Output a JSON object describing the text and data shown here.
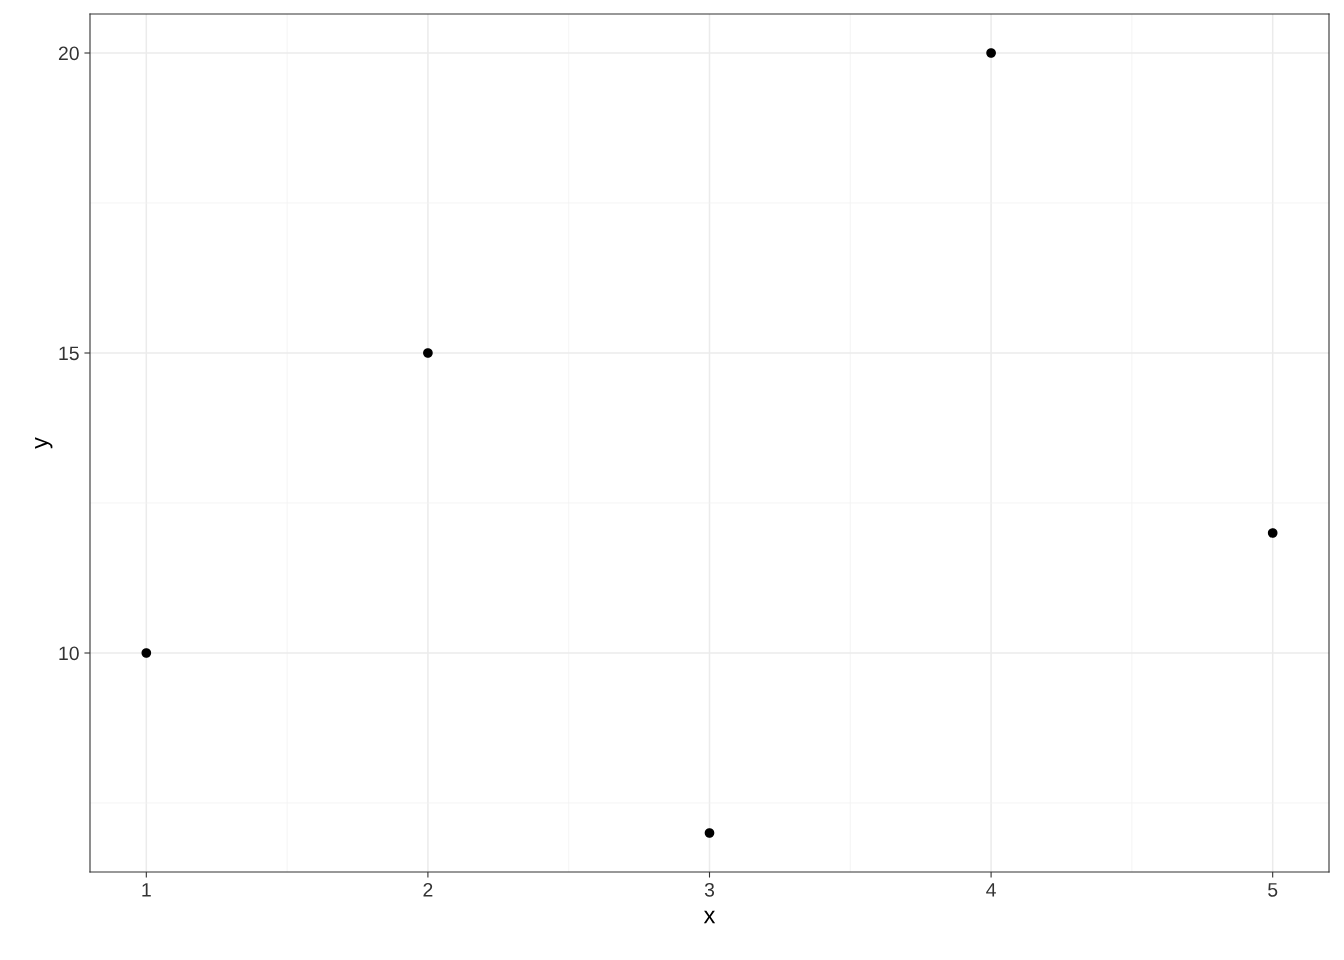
{
  "chart_data": {
    "type": "scatter",
    "xlabel": "x",
    "ylabel": "y",
    "x": [
      1,
      2,
      3,
      4,
      5
    ],
    "series": [
      {
        "color": "#000000",
        "values": [
          10,
          15,
          7,
          20,
          12
        ]
      }
    ],
    "xlim": [
      0.8,
      5.2
    ],
    "ylim": [
      6.35,
      20.65
    ],
    "xticks": [
      1,
      2,
      3,
      4,
      5
    ],
    "yticks": [
      10,
      15,
      20
    ],
    "grid": true,
    "marker": "circle"
  }
}
